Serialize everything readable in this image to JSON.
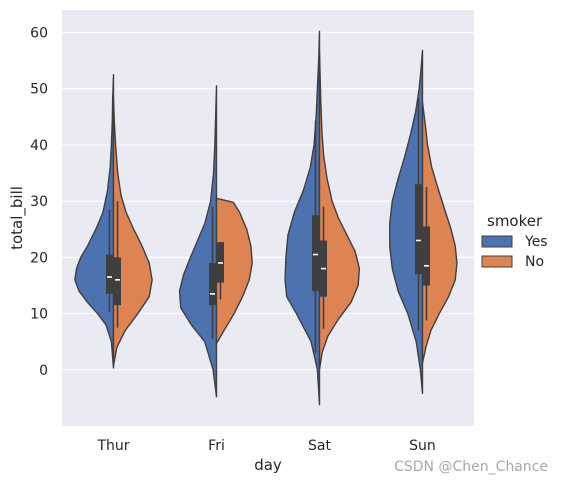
{
  "watermark": "CSDN @Chen_Chance",
  "chart_data": {
    "type": "violin",
    "split": true,
    "xlabel": "day",
    "ylabel": "total_bill",
    "categories": [
      "Thur",
      "Fri",
      "Sat",
      "Sun"
    ],
    "ylim": [
      -10,
      64
    ],
    "yticks": [
      0,
      10,
      20,
      30,
      40,
      50,
      60
    ],
    "grid": true,
    "background": "#eaeaf2",
    "legend": {
      "title": "smoker",
      "position": "right",
      "entries": [
        {
          "label": "Yes",
          "color": "#4c72b0"
        },
        {
          "label": "No",
          "color": "#dd8452"
        }
      ]
    },
    "series": [
      {
        "name": "Yes",
        "color": "#4c72b0",
        "violins": [
          {
            "category": "Thur",
            "range": [
              0.3,
              52.5
            ],
            "profile": [
              [
                0.3,
                0
              ],
              [
                5,
                0.05
              ],
              [
                8,
                0.18
              ],
              [
                10,
                0.38
              ],
              [
                12,
                0.62
              ],
              [
                14,
                0.82
              ],
              [
                16,
                0.92
              ],
              [
                18,
                0.88
              ],
              [
                20,
                0.78
              ],
              [
                22,
                0.62
              ],
              [
                25,
                0.42
              ],
              [
                28,
                0.25
              ],
              [
                32,
                0.14
              ],
              [
                36,
                0.08
              ],
              [
                40,
                0.05
              ],
              [
                44,
                0.03
              ],
              [
                48,
                0.02
              ],
              [
                52.5,
                0
              ]
            ],
            "whisker": [
              10.3,
              28.5
            ],
            "quartiles": [
              13.5,
              20.5
            ],
            "median": 16.5
          },
          {
            "category": "Fri",
            "range": [
              -4.8,
              50.5
            ],
            "profile": [
              [
                -4.8,
                0
              ],
              [
                0,
                0.08
              ],
              [
                5,
                0.28
              ],
              [
                8,
                0.6
              ],
              [
                11,
                0.85
              ],
              [
                14,
                0.88
              ],
              [
                17,
                0.78
              ],
              [
                20,
                0.62
              ],
              [
                23,
                0.45
              ],
              [
                26,
                0.28
              ],
              [
                30,
                0.14
              ],
              [
                35,
                0.07
              ],
              [
                40,
                0.04
              ],
              [
                45,
                0.02
              ],
              [
                50.5,
                0
              ]
            ],
            "whisker": [
              5.5,
              29.0
            ],
            "quartiles": [
              11.5,
              19.0
            ],
            "median": 13.5
          },
          {
            "category": "Sat",
            "range": [
              -6.2,
              60.2
            ],
            "profile": [
              [
                -6.2,
                0
              ],
              [
                0,
                0.05
              ],
              [
                5,
                0.2
              ],
              [
                10,
                0.55
              ],
              [
                13,
                0.78
              ],
              [
                16,
                0.82
              ],
              [
                20,
                0.8
              ],
              [
                24,
                0.75
              ],
              [
                28,
                0.6
              ],
              [
                32,
                0.38
              ],
              [
                36,
                0.22
              ],
              [
                40,
                0.13
              ],
              [
                45,
                0.08
              ],
              [
                50,
                0.05
              ],
              [
                55,
                0.02
              ],
              [
                60.2,
                0
              ]
            ],
            "whisker": [
              3.0,
              44.3
            ],
            "quartiles": [
              14.0,
              27.5
            ],
            "median": 20.5
          },
          {
            "category": "Sun",
            "range": [
              -4.2,
              56.8
            ],
            "profile": [
              [
                -4.2,
                0
              ],
              [
                0,
                0.05
              ],
              [
                5,
                0.15
              ],
              [
                10,
                0.35
              ],
              [
                14,
                0.58
              ],
              [
                18,
                0.72
              ],
              [
                22,
                0.78
              ],
              [
                26,
                0.78
              ],
              [
                30,
                0.72
              ],
              [
                34,
                0.58
              ],
              [
                38,
                0.42
              ],
              [
                42,
                0.28
              ],
              [
                46,
                0.16
              ],
              [
                50,
                0.08
              ],
              [
                53,
                0.04
              ],
              [
                56.8,
                0
              ]
            ],
            "whisker": [
              7.0,
              48.2
            ],
            "quartiles": [
              17.0,
              33.0
            ],
            "median": 23.0
          }
        ]
      },
      {
        "name": "No",
        "color": "#dd8452",
        "violins": [
          {
            "category": "Thur",
            "range": [
              0.7,
              48.3
            ],
            "profile": [
              [
                0.7,
                0
              ],
              [
                4,
                0.08
              ],
              [
                7,
                0.28
              ],
              [
                10,
                0.58
              ],
              [
                13,
                0.85
              ],
              [
                16,
                0.92
              ],
              [
                19,
                0.85
              ],
              [
                22,
                0.68
              ],
              [
                25,
                0.48
              ],
              [
                28,
                0.3
              ],
              [
                31,
                0.18
              ],
              [
                35,
                0.1
              ],
              [
                40,
                0.05
              ],
              [
                44,
                0.02
              ],
              [
                48.3,
                0
              ]
            ],
            "whisker": [
              7.5,
              30.0
            ],
            "quartiles": [
              11.5,
              20.0
            ],
            "median": 16.0
          },
          {
            "category": "Fri",
            "range": [
              4.7,
              30.5
            ],
            "profile": [
              [
                4.7,
                0
              ],
              [
                7,
                0.18
              ],
              [
                10,
                0.42
              ],
              [
                13,
                0.62
              ],
              [
                16,
                0.78
              ],
              [
                19,
                0.85
              ],
              [
                22,
                0.82
              ],
              [
                25,
                0.72
              ],
              [
                28,
                0.55
              ],
              [
                29.8,
                0.4
              ],
              [
                30.5,
                0
              ]
            ],
            "whisker": [
              12.5,
              22.7
            ],
            "quartiles": [
              15.5,
              22.7
            ],
            "median": 19.0
          },
          {
            "category": "Sat",
            "range": [
              0,
              56.5
            ],
            "profile": [
              [
                0,
                0
              ],
              [
                3,
                0.06
              ],
              [
                6,
                0.2
              ],
              [
                9,
                0.45
              ],
              [
                12,
                0.75
              ],
              [
                15,
                0.92
              ],
              [
                18,
                0.95
              ],
              [
                21,
                0.85
              ],
              [
                24,
                0.65
              ],
              [
                27,
                0.45
              ],
              [
                30,
                0.3
              ],
              [
                34,
                0.18
              ],
              [
                38,
                0.1
              ],
              [
                42,
                0.06
              ],
              [
                48,
                0.03
              ],
              [
                56.5,
                0
              ]
            ],
            "whisker": [
              7.3,
              29.0
            ],
            "quartiles": [
              13.0,
              23.0
            ],
            "median": 18.0
          },
          {
            "category": "Sun",
            "range": [
              1.2,
              47.5
            ],
            "profile": [
              [
                1.2,
                0
              ],
              [
                4,
                0.08
              ],
              [
                7,
                0.2
              ],
              [
                10,
                0.4
              ],
              [
                13,
                0.62
              ],
              [
                16,
                0.78
              ],
              [
                19,
                0.82
              ],
              [
                22,
                0.78
              ],
              [
                25,
                0.68
              ],
              [
                28,
                0.55
              ],
              [
                32,
                0.38
              ],
              [
                36,
                0.22
              ],
              [
                40,
                0.12
              ],
              [
                44,
                0.06
              ],
              [
                47.5,
                0
              ]
            ],
            "whisker": [
              8.8,
              32.5
            ],
            "quartiles": [
              15.0,
              25.5
            ],
            "median": 18.5
          }
        ]
      }
    ]
  }
}
